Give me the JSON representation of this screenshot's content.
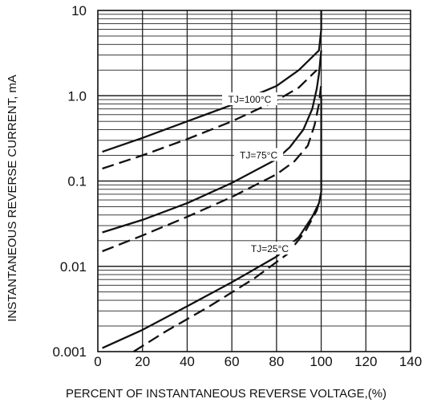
{
  "chart_data": {
    "type": "line",
    "title": "",
    "xlabel": "PERCENT OF INSTANTANEOUS REVERSE VOLTAGE,(%)",
    "ylabel": "INSTANTANEOUS REVERSE CURRENT, mA",
    "xlim": [
      0,
      140
    ],
    "ylim": [
      0.001,
      10
    ],
    "yscale": "log",
    "grid": true,
    "x_ticks": [
      0,
      20,
      40,
      60,
      80,
      100,
      120,
      140
    ],
    "x_tick_labels": [
      "0",
      "20",
      "40",
      "60",
      "80",
      "100",
      "120",
      "140"
    ],
    "y_ticks": [
      0.001,
      0.01,
      0.1,
      1,
      10
    ],
    "y_tick_labels": [
      "0.001",
      "0.01",
      "0.1",
      "1.0",
      "10"
    ],
    "colors": {
      "line": "#111111",
      "grid": "#222222",
      "background": "#ffffff"
    },
    "series": [
      {
        "group": "100C",
        "style": "solid",
        "x": [
          2,
          20,
          40,
          60,
          80,
          90,
          99,
          100,
          100
        ],
        "y": [
          0.22,
          0.32,
          0.5,
          0.78,
          1.3,
          2.0,
          3.4,
          6.0,
          10
        ]
      },
      {
        "group": "100C",
        "style": "dashed",
        "x": [
          2,
          20,
          40,
          60,
          80,
          90,
          98
        ],
        "y": [
          0.14,
          0.2,
          0.31,
          0.5,
          0.88,
          1.25,
          2.0
        ]
      },
      {
        "group": "75C",
        "style": "solid",
        "x": [
          2,
          20,
          40,
          60,
          80,
          86,
          92,
          96,
          98,
          99,
          100
        ],
        "y": [
          0.025,
          0.035,
          0.055,
          0.095,
          0.18,
          0.25,
          0.4,
          0.7,
          1.2,
          1.8,
          3.4
        ]
      },
      {
        "group": "75C",
        "style": "dashed",
        "x": [
          2,
          20,
          40,
          60,
          80,
          88,
          94,
          97,
          99,
          100
        ],
        "y": [
          0.015,
          0.023,
          0.038,
          0.065,
          0.12,
          0.17,
          0.26,
          0.45,
          0.8,
          1.4
        ]
      },
      {
        "group": "25C",
        "style": "solid",
        "x": [
          2,
          20,
          40,
          60,
          80,
          90,
          96,
          99,
          100,
          100
        ],
        "y": [
          0.0011,
          0.0018,
          0.0034,
          0.0065,
          0.013,
          0.022,
          0.038,
          0.055,
          0.075,
          1.0
        ]
      },
      {
        "group": "25C",
        "style": "dashed",
        "x": [
          16,
          30,
          50,
          70,
          85,
          93,
          98,
          100
        ],
        "y": [
          0.001,
          0.0017,
          0.0034,
          0.0072,
          0.014,
          0.026,
          0.045,
          0.07
        ]
      }
    ],
    "annotations": [
      {
        "text": "TJ=100°C",
        "x": 68,
        "y": 0.9
      },
      {
        "text": "TJ=75°C",
        "x": 72,
        "y": 0.2
      },
      {
        "text": "TJ=25°C",
        "x": 77,
        "y": 0.016
      }
    ]
  }
}
